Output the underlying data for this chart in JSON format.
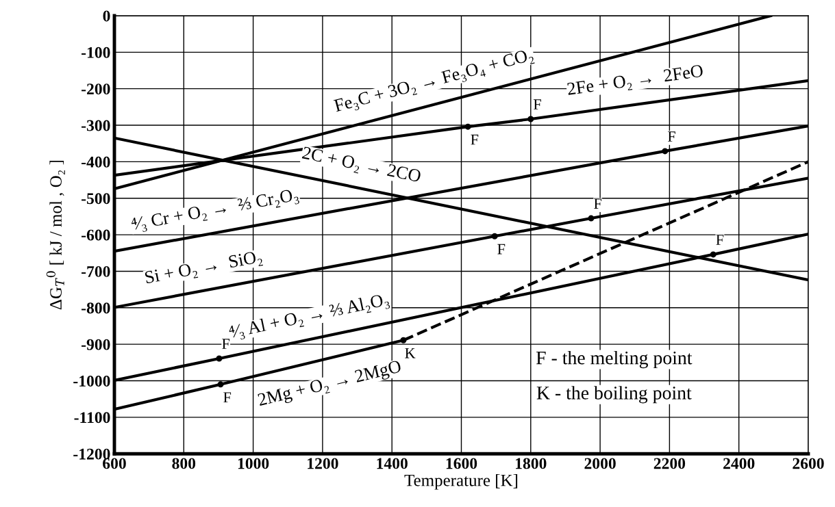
{
  "chart_data": {
    "type": "line",
    "xlabel": "Temperature [K]",
    "ylabel": "ΔG$_{T}$$^{0}$ [ kJ / mol , O₂ ]",
    "xlim": [
      600,
      2600
    ],
    "ylim": [
      -1200,
      0
    ],
    "xticks": [
      600,
      800,
      1000,
      1200,
      1400,
      1600,
      1800,
      2000,
      2200,
      2400,
      2600
    ],
    "yticks": [
      -1200,
      -1100,
      -1000,
      -900,
      -800,
      -700,
      -600,
      -500,
      -400,
      -300,
      -200,
      -100,
      0
    ],
    "grid": true,
    "line_style": "solid",
    "marker": "none",
    "series": [
      {
        "color": "#000000",
        "x": [
          600,
          2492
        ],
        "values": [
          -474,
          0
        ]
      },
      {
        "color": "#000000",
        "x": [
          600,
          1619,
          1800,
          2600
        ],
        "values": [
          -437,
          -304,
          -283,
          -178
        ]
      },
      {
        "color": "#000000",
        "x": [
          600,
          2600
        ],
        "values": [
          -335,
          -724
        ]
      },
      {
        "color": "#000000",
        "x": [
          600,
          2187,
          2600
        ],
        "values": [
          -645,
          -371,
          -302
        ]
      },
      {
        "color": "#000000",
        "x": [
          600,
          1696,
          1974,
          2600
        ],
        "values": [
          -799,
          -604,
          -555,
          -445
        ]
      },
      {
        "color": "#000000",
        "x": [
          600,
          902,
          2326,
          2600
        ],
        "values": [
          -999,
          -939,
          -654,
          -598
        ]
      },
      {
        "color": "#000000",
        "x": [
          600,
          906,
          1433
        ],
        "values": [
          -1078,
          -1010,
          -889
        ]
      },
      {
        "color": "#000000",
        "x": [
          1433,
          2600
        ],
        "values": [
          -889,
          -400
        ],
        "line_style": "dashed"
      },
      {
        "type": "scatter",
        "color": "#000000",
        "marker": "circle",
        "x": [
          1619,
          1800,
          2187,
          1696,
          1974,
          902,
          2326,
          906,
          1433
        ],
        "values": [
          -304,
          -283,
          -371,
          -604,
          -555,
          -939,
          -654,
          -1010,
          -889
        ]
      }
    ],
    "annotations": [
      {
        "text": "Fe₃C + 3O₂ → Fe₃O₄ + CO₂",
        "x": 1538,
        "y": -238
      },
      {
        "text": "2Fe + O₂ →  2FeO",
        "x": 2110,
        "y": -239
      },
      {
        "text": "2C + O₂ → 2CO",
        "x": 1299,
        "y": -470
      },
      {
        "text": "⁴⁄₃ Cr + O₂ →  ⅔ Cr₂O₃",
        "x": 902,
        "y": -593
      },
      {
        "text": "Si + O₂ →  SiO₂",
        "x": 869,
        "y": -751
      },
      {
        "text": "⁴⁄₃ Al + O₂ → ⅔ Al₂O₃",
        "x": 1175,
        "y": -884
      },
      {
        "text": "2Mg + O₂ → 2MgO",
        "x": 1206,
        "y": -952
      },
      {
        "text": "F",
        "x": 1619,
        "y": -304
      },
      {
        "text": "F",
        "x": 1800,
        "y": -283
      },
      {
        "text": "F",
        "x": 2187,
        "y": -371
      },
      {
        "text": "F",
        "x": 1974,
        "y": -555
      },
      {
        "text": "F",
        "x": 1696,
        "y": -604
      },
      {
        "text": "F",
        "x": 2326,
        "y": -654
      },
      {
        "text": "F",
        "x": 902,
        "y": -939
      },
      {
        "text": "F",
        "x": 906,
        "y": -1010
      },
      {
        "text": "K",
        "x": 1433,
        "y": -889
      },
      "F - the melting point",
      "K - the boiling point"
    ]
  }
}
